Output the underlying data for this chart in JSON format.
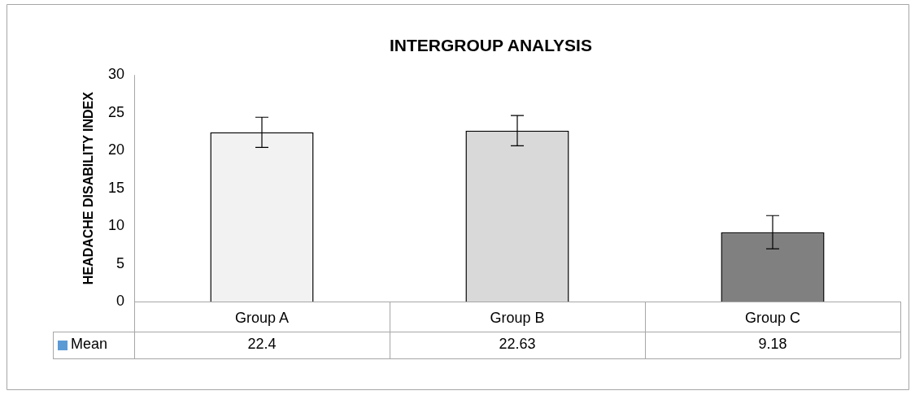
{
  "chart_data": {
    "type": "bar",
    "title": "INTERGROUP ANALYSIS",
    "ylabel": "HEADACHE DISABILITY INDEX",
    "categories": [
      "Group A",
      "Group B",
      "Group C"
    ],
    "series": [
      {
        "name": "Mean",
        "color": "#5b9bd5",
        "colors": [
          "#f2f2f2",
          "#d9d9d9",
          "#808080"
        ],
        "values": [
          22.4,
          22.63,
          9.18
        ],
        "errors": [
          2,
          2,
          2.2
        ]
      }
    ],
    "ylim": [
      0,
      30
    ],
    "yticks": [
      0,
      5,
      10,
      15,
      20,
      25,
      30
    ],
    "grid": false,
    "legend": "bottom",
    "data_labels": true
  }
}
